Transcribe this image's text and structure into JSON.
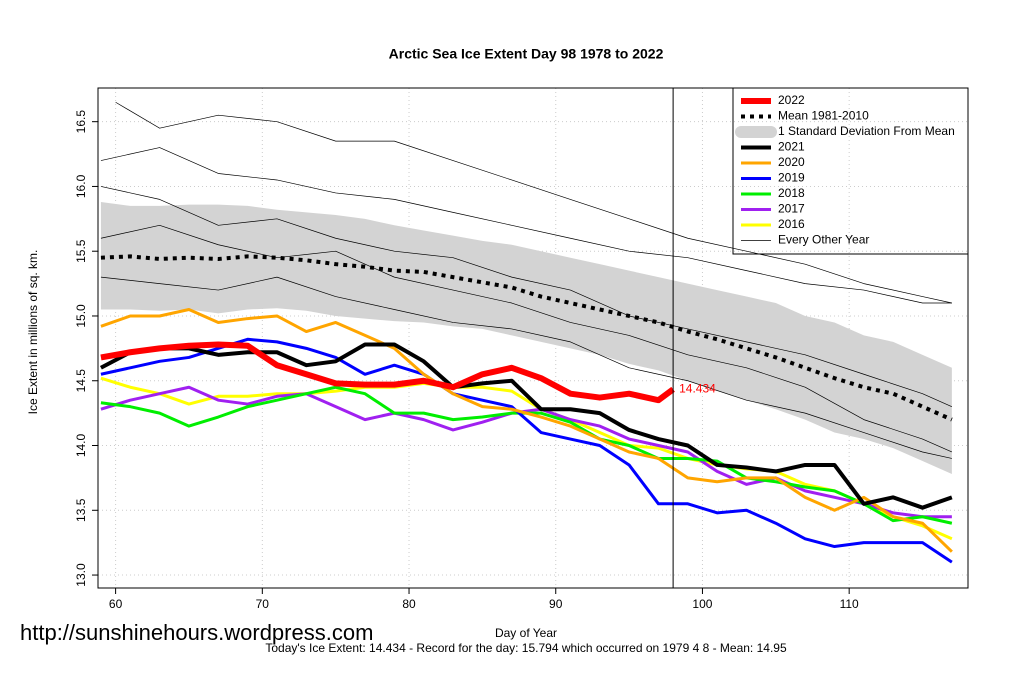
{
  "chart_data": {
    "type": "line",
    "title": "Arctic Sea Ice Extent Day 98 1978 to 2022",
    "x_label": "Day of Year",
    "y_label": "Ice Extent in millions of sq. km.",
    "footer": "Today's Ice Extent: 14.434  - Record for the day: 15.794 which occurred on 1979 4 8  - Mean: 14.95",
    "watermark": "http://sunshinehours.wordpress.com",
    "xlim": [
      58.8,
      118.1
    ],
    "ylim": [
      12.9,
      16.76
    ],
    "xticks": [
      60,
      70,
      80,
      90,
      100,
      110
    ],
    "yticks": [
      {
        "value": 13,
        "label": "13.0"
      },
      13.5,
      {
        "value": 14,
        "label": "14.0"
      },
      14.5,
      {
        "value": 15,
        "label": "15.0"
      },
      15.5,
      {
        "value": 16,
        "label": "16.0"
      },
      16.5
    ],
    "grid": true,
    "vline": 98,
    "legend": "topright",
    "series": [
      {
        "name": "2022",
        "color": "#ff0000",
        "width": 6,
        "x": [
          59,
          61,
          63,
          65,
          67,
          69,
          71,
          73,
          75,
          77,
          79,
          81,
          83,
          85,
          87,
          89,
          91,
          93,
          95,
          97,
          98
        ],
        "values": [
          14.68,
          14.72,
          14.75,
          14.77,
          14.78,
          14.77,
          14.62,
          14.55,
          14.48,
          14.47,
          14.47,
          14.5,
          14.45,
          14.55,
          14.6,
          14.52,
          14.4,
          14.37,
          14.4,
          14.35,
          14.434
        ]
      },
      {
        "name": "Mean 1981-2010",
        "color": "#000000",
        "width": 4,
        "dash": "4 5",
        "x": [
          59,
          61,
          63,
          65,
          67,
          69,
          71,
          73,
          75,
          77,
          79,
          81,
          83,
          85,
          87,
          89,
          91,
          93,
          95,
          97,
          99,
          101,
          103,
          105,
          107,
          109,
          111,
          113,
          115,
          117
        ],
        "values": [
          15.45,
          15.46,
          15.44,
          15.45,
          15.44,
          15.46,
          15.45,
          15.43,
          15.4,
          15.38,
          15.35,
          15.34,
          15.3,
          15.26,
          15.22,
          15.15,
          15.1,
          15.05,
          15.0,
          14.95,
          14.88,
          14.82,
          14.75,
          14.68,
          14.6,
          14.52,
          14.45,
          14.4,
          14.3,
          14.2
        ]
      },
      {
        "name": "1 Standard Deviation From Mean",
        "color": "#d3d3d3",
        "band": true,
        "x": [
          59,
          61,
          63,
          65,
          67,
          69,
          71,
          73,
          75,
          77,
          79,
          81,
          83,
          85,
          87,
          89,
          91,
          93,
          95,
          97,
          99,
          101,
          103,
          105,
          107,
          109,
          111,
          113,
          115,
          117
        ],
        "upper": [
          15.88,
          15.85,
          15.85,
          15.86,
          15.86,
          15.85,
          15.82,
          15.8,
          15.78,
          15.75,
          15.7,
          15.66,
          15.62,
          15.58,
          15.55,
          15.5,
          15.45,
          15.4,
          15.35,
          15.3,
          15.25,
          15.2,
          15.15,
          15.1,
          15.0,
          14.95,
          14.85,
          14.8,
          14.7,
          14.6
        ],
        "lower": [
          15.05,
          15.05,
          15.04,
          15.05,
          15.02,
          15.05,
          15.06,
          15.04,
          15.0,
          14.98,
          14.96,
          14.95,
          14.92,
          14.9,
          14.85,
          14.8,
          14.75,
          14.7,
          14.63,
          14.58,
          14.5,
          14.42,
          14.35,
          14.28,
          14.2,
          14.1,
          14.05,
          13.98,
          13.88,
          13.78
        ]
      },
      {
        "name": "2021",
        "color": "#000000",
        "width": 4,
        "x": [
          59,
          61,
          63,
          65,
          67,
          69,
          71,
          73,
          75,
          77,
          79,
          81,
          83,
          85,
          87,
          89,
          91,
          93,
          95,
          97,
          99,
          101,
          103,
          105,
          107,
          109,
          111,
          113,
          115,
          117
        ],
        "values": [
          14.6,
          14.72,
          14.75,
          14.75,
          14.7,
          14.72,
          14.72,
          14.62,
          14.65,
          14.78,
          14.78,
          14.65,
          14.45,
          14.48,
          14.5,
          14.28,
          14.28,
          14.25,
          14.12,
          14.05,
          14.0,
          13.85,
          13.83,
          13.8,
          13.85,
          13.85,
          13.55,
          13.6,
          13.52,
          13.6
        ]
      },
      {
        "name": "2020",
        "color": "#ffa500",
        "width": 3,
        "x": [
          59,
          61,
          63,
          65,
          67,
          69,
          71,
          73,
          75,
          77,
          79,
          81,
          83,
          85,
          87,
          89,
          91,
          93,
          95,
          97,
          99,
          101,
          103,
          105,
          107,
          109,
          111,
          113,
          115,
          117
        ],
        "values": [
          14.92,
          15.0,
          15.0,
          15.05,
          14.95,
          14.98,
          15.0,
          14.88,
          14.95,
          14.85,
          14.75,
          14.55,
          14.4,
          14.3,
          14.28,
          14.22,
          14.15,
          14.05,
          13.95,
          13.9,
          13.75,
          13.72,
          13.75,
          13.75,
          13.6,
          13.5,
          13.6,
          13.45,
          13.4,
          13.18
        ]
      },
      {
        "name": "2019",
        "color": "#0000ff",
        "width": 3,
        "x": [
          59,
          61,
          63,
          65,
          67,
          69,
          71,
          73,
          75,
          77,
          79,
          81,
          83,
          85,
          87,
          89,
          91,
          93,
          95,
          97,
          99,
          101,
          103,
          105,
          107,
          109,
          111,
          113,
          115,
          117
        ],
        "values": [
          14.55,
          14.6,
          14.65,
          14.68,
          14.75,
          14.82,
          14.8,
          14.75,
          14.68,
          14.55,
          14.62,
          14.55,
          14.4,
          14.35,
          14.3,
          14.1,
          14.05,
          14.0,
          13.85,
          13.55,
          13.55,
          13.48,
          13.5,
          13.4,
          13.28,
          13.22,
          13.25,
          13.25,
          13.25,
          13.1
        ]
      },
      {
        "name": "2018",
        "color": "#00ee00",
        "width": 3,
        "x": [
          59,
          61,
          63,
          65,
          67,
          69,
          71,
          73,
          75,
          77,
          79,
          81,
          83,
          85,
          87,
          89,
          91,
          93,
          95,
          97,
          99,
          101,
          103,
          105,
          107,
          109,
          111,
          113,
          115,
          117
        ],
        "values": [
          14.33,
          14.3,
          14.25,
          14.15,
          14.22,
          14.3,
          14.35,
          14.4,
          14.45,
          14.4,
          14.25,
          14.25,
          14.2,
          14.22,
          14.25,
          14.25,
          14.18,
          14.05,
          14.0,
          13.9,
          13.9,
          13.88,
          13.75,
          13.72,
          13.68,
          13.65,
          13.55,
          13.42,
          13.45,
          13.4
        ]
      },
      {
        "name": "2017",
        "color": "#a020f0",
        "width": 3,
        "x": [
          59,
          61,
          63,
          65,
          67,
          69,
          71,
          73,
          75,
          77,
          79,
          81,
          83,
          85,
          87,
          89,
          91,
          93,
          95,
          97,
          99,
          101,
          103,
          105,
          107,
          109,
          111,
          113,
          115,
          117
        ],
        "values": [
          14.28,
          14.35,
          14.4,
          14.45,
          14.35,
          14.32,
          14.38,
          14.4,
          14.3,
          14.2,
          14.25,
          14.2,
          14.12,
          14.18,
          14.25,
          14.28,
          14.2,
          14.15,
          14.05,
          14.0,
          13.95,
          13.8,
          13.7,
          13.75,
          13.65,
          13.6,
          13.55,
          13.48,
          13.45,
          13.45
        ]
      },
      {
        "name": "2016",
        "color": "#ffff00",
        "width": 3,
        "x": [
          59,
          61,
          63,
          65,
          67,
          69,
          71,
          73,
          75,
          77,
          79,
          81,
          83,
          85,
          87,
          89,
          91,
          93,
          95,
          97,
          99,
          101,
          103,
          105,
          107,
          109,
          111,
          113,
          115,
          117
        ],
        "values": [
          14.52,
          14.45,
          14.4,
          14.32,
          14.38,
          14.38,
          14.4,
          14.4,
          14.42,
          14.45,
          14.45,
          14.48,
          14.45,
          14.45,
          14.42,
          14.28,
          14.2,
          14.1,
          14.0,
          13.98,
          13.9,
          13.85,
          13.82,
          13.8,
          13.7,
          13.65,
          13.55,
          13.45,
          13.38,
          13.28
        ]
      },
      {
        "name": "Every Other Year",
        "color": "#000000",
        "width": 0.7,
        "x": [
          59,
          63,
          67,
          71,
          75,
          79,
          83,
          87,
          91,
          95,
          99,
          103,
          107,
          111,
          115,
          117
        ],
        "values": [
          16.2,
          16.3,
          16.1,
          16.05,
          15.95,
          15.9,
          15.8,
          15.7,
          15.6,
          15.5,
          15.45,
          15.35,
          15.25,
          15.2,
          15.1,
          15.1
        ]
      },
      {
        "color": "#000000",
        "width": 0.7,
        "x": [
          59,
          63,
          67,
          71,
          75,
          79,
          83,
          87,
          91,
          95,
          99,
          103,
          107,
          111,
          115,
          117
        ],
        "values": [
          16.0,
          15.9,
          15.7,
          15.75,
          15.6,
          15.5,
          15.45,
          15.3,
          15.2,
          15.0,
          14.9,
          14.8,
          14.7,
          14.55,
          14.4,
          14.3
        ]
      },
      {
        "color": "#000000",
        "width": 0.7,
        "x": [
          59,
          63,
          67,
          71,
          75,
          79,
          83,
          87,
          91,
          95,
          99,
          103,
          107,
          111,
          115,
          117
        ],
        "values": [
          15.3,
          15.25,
          15.2,
          15.3,
          15.15,
          15.05,
          14.95,
          14.9,
          14.8,
          14.6,
          14.5,
          14.35,
          14.25,
          14.1,
          13.95,
          13.9
        ]
      },
      {
        "color": "#000000",
        "width": 0.7,
        "x": [
          60,
          63,
          67,
          71,
          75,
          79,
          83,
          87,
          91,
          95,
          99,
          103,
          107,
          111,
          115,
          117
        ],
        "values": [
          16.65,
          16.45,
          16.55,
          16.5,
          16.35,
          16.35,
          16.2,
          16.05,
          15.9,
          15.75,
          15.6,
          15.5,
          15.4,
          15.25,
          15.15,
          15.1
        ]
      },
      {
        "color": "#000000",
        "width": 0.7,
        "x": [
          59,
          63,
          67,
          71,
          75,
          79,
          83,
          87,
          91,
          95,
          99,
          103,
          107,
          111,
          115,
          117
        ],
        "values": [
          15.6,
          15.7,
          15.55,
          15.45,
          15.5,
          15.3,
          15.2,
          15.1,
          14.95,
          14.85,
          14.7,
          14.6,
          14.45,
          14.2,
          14.05,
          13.95
        ]
      }
    ]
  }
}
